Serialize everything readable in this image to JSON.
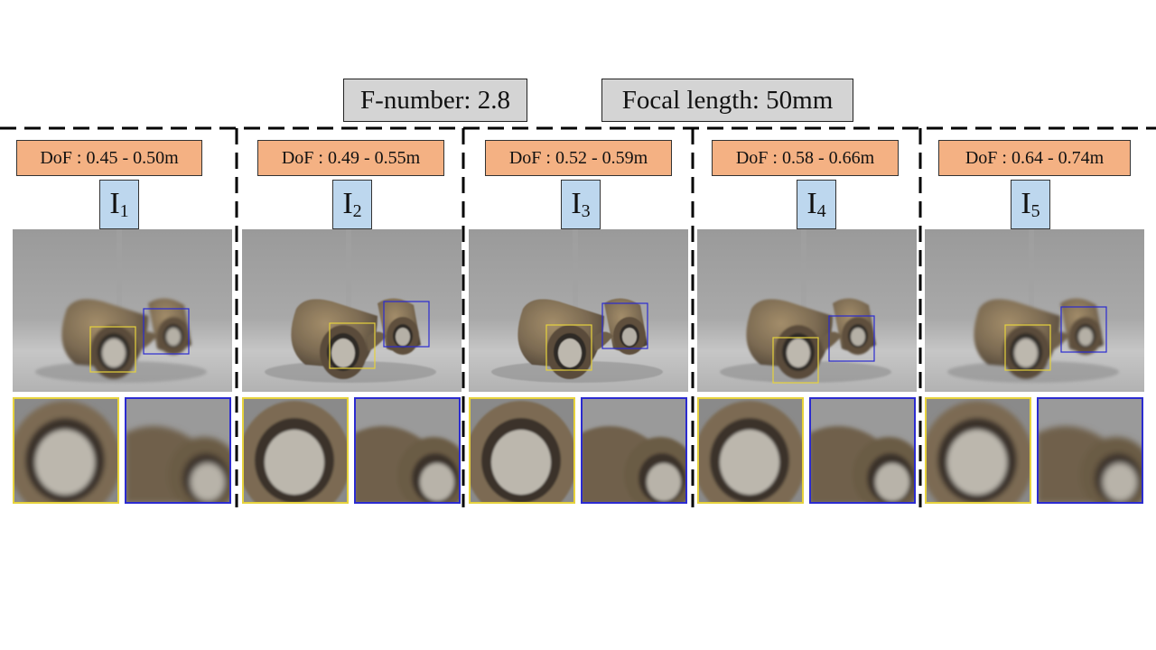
{
  "header": {
    "f_number": "F-number: 2.8",
    "focal_length": "Focal length: 50mm"
  },
  "panels": [
    {
      "dof": "DoF : 0.45 - 0.50m",
      "label": "I",
      "sub": "1",
      "blur": 1.6
    },
    {
      "dof": "DoF : 0.49 - 0.55m",
      "label": "I",
      "sub": "2",
      "blur": 0.9
    },
    {
      "dof": "DoF : 0.52 - 0.59m",
      "label": "I",
      "sub": "3",
      "blur": 0.6
    },
    {
      "dof": "DoF : 0.58 - 0.66m",
      "label": "I",
      "sub": "4",
      "blur": 1.0
    },
    {
      "dof": "DoF : 0.64 - 0.74m",
      "label": "I",
      "sub": "5",
      "blur": 1.7
    }
  ],
  "colors": {
    "dof_fill": "#f4b183",
    "label_fill": "#bdd7ee",
    "header_fill": "#d4d4d4",
    "near_box": "#e6d23c",
    "far_box": "#2b2bd0"
  }
}
